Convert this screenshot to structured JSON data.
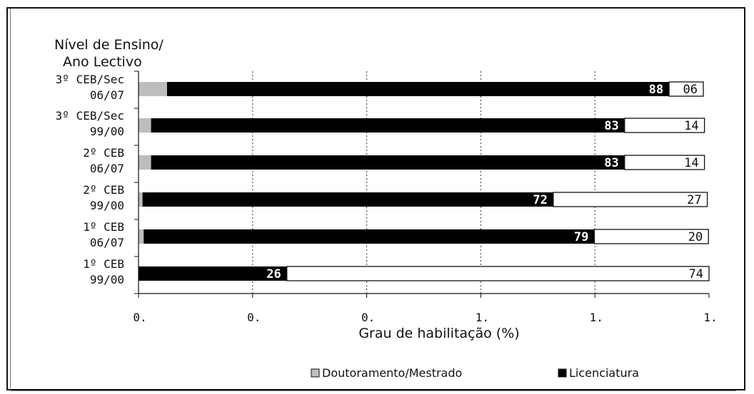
{
  "chart_data": {
    "type": "bar",
    "orientation": "horizontal",
    "stacked": true,
    "y_title_lines": [
      "Nível de Ensino/",
      "Ano Lectivo"
    ],
    "xlabel": "Grau de habilitação (%)",
    "x_tick_labels": [
      "0.",
      "0.",
      "0.",
      "1.",
      "1.",
      "1."
    ],
    "xlim": [
      0,
      100
    ],
    "grid": "vertical dotted",
    "legend_position": "bottom",
    "categories": [
      [
        "3º CEB/Sec",
        "06/07"
      ],
      [
        "3º CEB/Sec",
        "99/00"
      ],
      [
        "2º CEB",
        "06/07"
      ],
      [
        "2º CEB",
        "99/00"
      ],
      [
        "1º CEB",
        "06/07"
      ],
      [
        "1º CEB",
        "99/00"
      ]
    ],
    "series": [
      {
        "name": "Doutoramento/Mestrado",
        "color": "#bdbdbd",
        "values": [
          5,
          2.2,
          2.2,
          0.7,
          0.9,
          0
        ],
        "labels": [
          "",
          "",
          "",
          "",
          "",
          ""
        ]
      },
      {
        "name": "Licenciatura",
        "color": "#000000",
        "values": [
          88,
          83,
          83,
          72,
          79,
          26
        ],
        "labels": [
          "88",
          "83",
          "83",
          "72",
          "79",
          "26"
        ]
      },
      {
        "name": "",
        "color": "#ffffff",
        "values": [
          6,
          14,
          14,
          27,
          20,
          74
        ],
        "labels": [
          "06",
          "14",
          "14",
          "27",
          "20",
          "74"
        ]
      }
    ],
    "legend": [
      "Doutoramento/Mestrado",
      "Licenciatura"
    ]
  }
}
